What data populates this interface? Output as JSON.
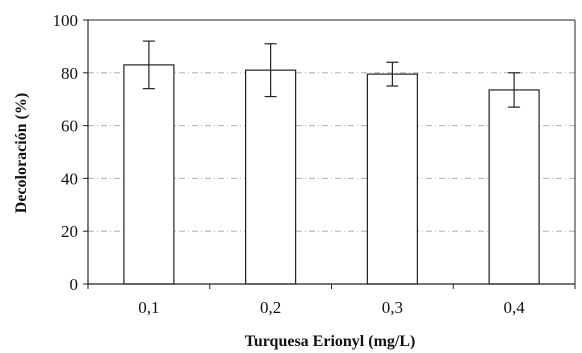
{
  "chart_data": {
    "type": "bar",
    "categories": [
      "0,1",
      "0,2",
      "0,3",
      "0,4"
    ],
    "values": [
      83,
      81,
      79.5,
      73.5
    ],
    "errors": [
      9,
      10,
      4.5,
      6.5
    ],
    "xlabel": "Turquesa Erionyl (mg/L)",
    "ylabel": "Decoloración (%)",
    "ylim": [
      0,
      100
    ],
    "yticks": [
      0,
      20,
      40,
      60,
      80,
      100
    ],
    "grid": "horizontal dash-dot",
    "legend": "none"
  }
}
